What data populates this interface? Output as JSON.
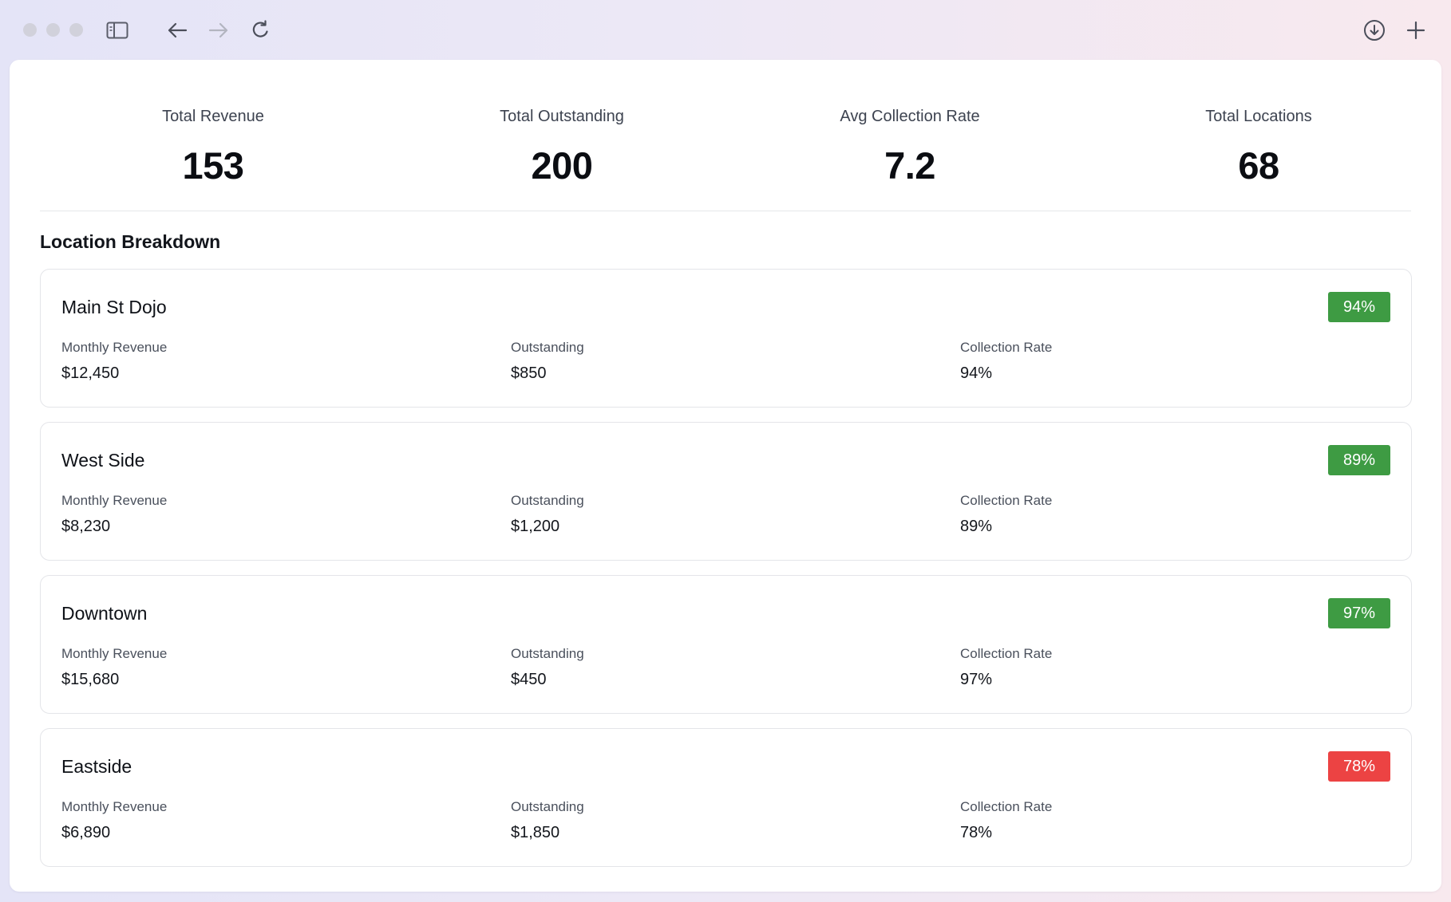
{
  "browser": {
    "traffic_lights": [
      "close",
      "minimize",
      "zoom"
    ],
    "icons": [
      "sidebar-icon",
      "back-arrow-icon",
      "forward-arrow-icon",
      "reload-icon",
      "download-icon",
      "new-tab-plus-icon"
    ]
  },
  "stats": [
    {
      "label": "Total Revenue",
      "value": "153"
    },
    {
      "label": "Total Outstanding",
      "value": "200"
    },
    {
      "label": "Avg Collection Rate",
      "value": "7.2"
    },
    {
      "label": "Total Locations",
      "value": "68"
    }
  ],
  "section_title": "Location Breakdown",
  "metric_labels": {
    "revenue": "Monthly Revenue",
    "outstanding": "Outstanding",
    "rate": "Collection Rate"
  },
  "locations": [
    {
      "name": "Main St Dojo",
      "badge": "94%",
      "badge_status": "good",
      "badge_color": "#3e9b43",
      "revenue": "$12,450",
      "outstanding": "$850",
      "rate": "94%"
    },
    {
      "name": "West Side",
      "badge": "89%",
      "badge_status": "good",
      "badge_color": "#3e9b43",
      "revenue": "$8,230",
      "outstanding": "$1,200",
      "rate": "89%"
    },
    {
      "name": "Downtown",
      "badge": "97%",
      "badge_status": "good",
      "badge_color": "#3e9b43",
      "revenue": "$15,680",
      "outstanding": "$450",
      "rate": "97%"
    },
    {
      "name": "Eastside",
      "badge": "78%",
      "badge_status": "bad",
      "badge_color": "#ec4343",
      "revenue": "$6,890",
      "outstanding": "$1,850",
      "rate": "78%"
    }
  ]
}
